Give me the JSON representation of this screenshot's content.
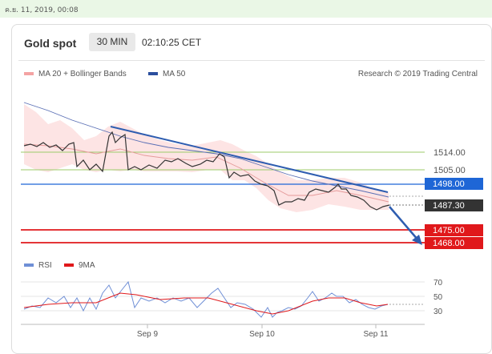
{
  "timestamp": "ค.ย. 11, 2019, 00:08",
  "header": {
    "title": "Gold spot",
    "interval": "30 MIN",
    "time": "02:10:25 CET"
  },
  "legend": {
    "ma20": "MA 20 + Bollinger Bands",
    "ma50": "MA 50",
    "credit": "Research © 2019 Trading Central"
  },
  "price_levels": [
    {
      "label": "1514.00",
      "color": "#8fbf52",
      "style": "line"
    },
    {
      "label": "1505.00",
      "color": "#8fbf52",
      "style": "line"
    },
    {
      "label": "1498.00",
      "color": "#1e66d6",
      "style": "box"
    },
    {
      "label": "1487.30",
      "color": "#333333",
      "style": "box"
    },
    {
      "label": "1475.00",
      "color": "#e0181b",
      "style": "box"
    },
    {
      "label": "1468.00",
      "color": "#e0181b",
      "style": "box"
    }
  ],
  "rsi": {
    "legend_rsi": "RSI",
    "legend_ma": "9MA",
    "ticks": [
      "70",
      "50",
      "30"
    ]
  },
  "x_axis": [
    "Sep 9",
    "Sep 10",
    "Sep 11"
  ]
}
